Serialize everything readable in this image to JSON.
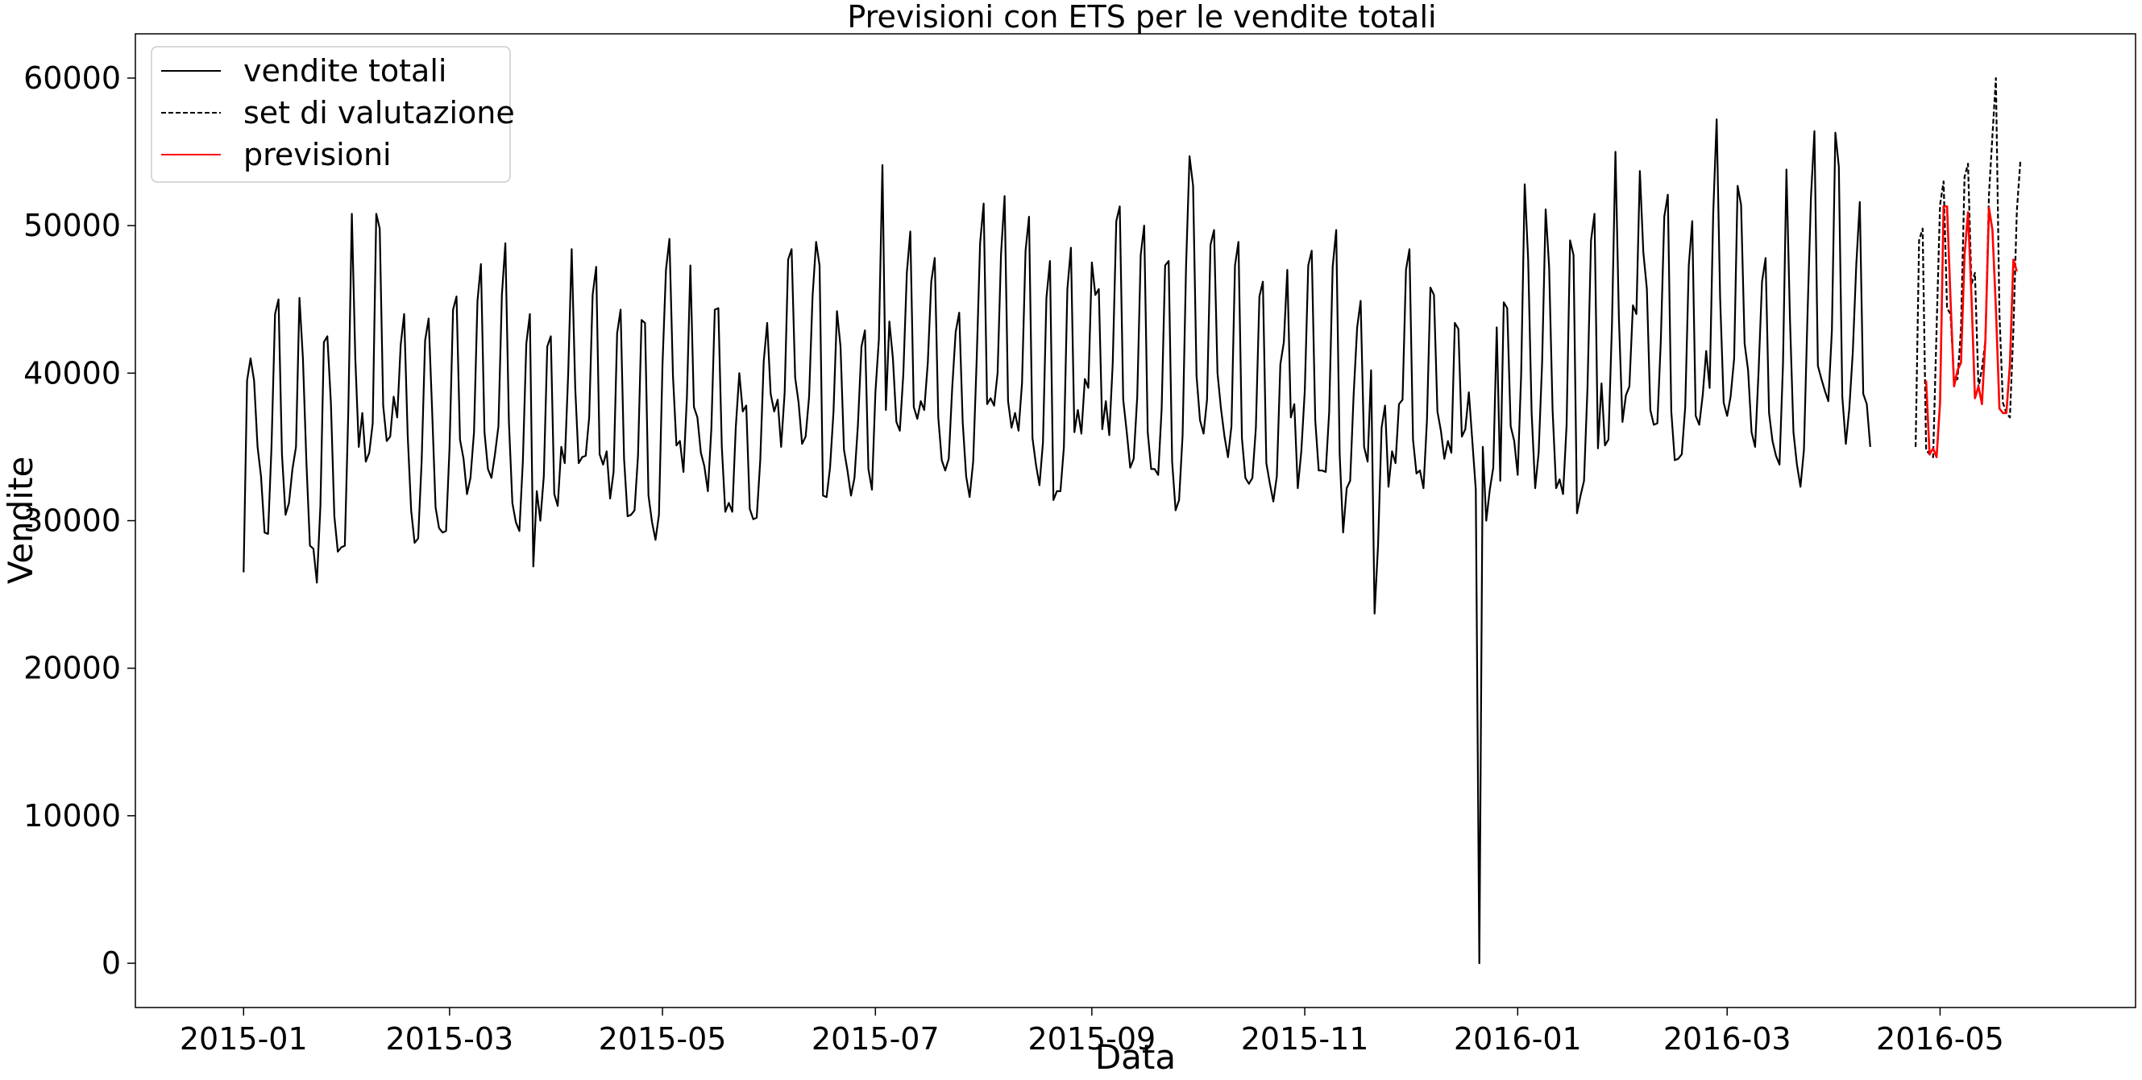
{
  "chart_data": {
    "type": "line",
    "title": "Previsioni con ETS per le vendite totali",
    "xlabel": "Data",
    "ylabel": "Vendite",
    "x_type": "date",
    "xlim": [
      "2014-12-01",
      "2016-06-26"
    ],
    "ylim": [
      -3000,
      63000
    ],
    "x_ticks": [
      "2015-01",
      "2015-03",
      "2015-05",
      "2015-07",
      "2015-09",
      "2015-11",
      "2016-01",
      "2016-03",
      "2016-05"
    ],
    "y_ticks": [
      0,
      10000,
      20000,
      30000,
      40000,
      50000,
      60000
    ],
    "grid": false,
    "legend_position": "top-left",
    "colors": {
      "vendite_totali": "#000000",
      "set_di_valutazione": "#000000",
      "previsioni": "#ff0000"
    },
    "series": [
      {
        "name": "vendite totali",
        "style": "solid",
        "start_date": "2015-01-01",
        "step": "1 day",
        "values": [
          26500,
          39500,
          41000,
          39500,
          35000,
          33000,
          29200,
          29100,
          35000,
          44000,
          45000,
          34500,
          30400,
          31200,
          33500,
          35000,
          45100,
          41000,
          34000,
          28300,
          28100,
          25800,
          31000,
          42100,
          42500,
          38000,
          30300,
          27900,
          28200,
          28300,
          37400,
          50800,
          41000,
          35000,
          37300,
          34000,
          34600,
          36600,
          50800,
          49800,
          37800,
          35400,
          35700,
          38400,
          37000,
          41900,
          44000,
          35800,
          30700,
          28500,
          28800,
          34000,
          42200,
          43700,
          37500,
          30900,
          29500,
          29200,
          29300,
          34900,
          44300,
          45200,
          35500,
          34200,
          31800,
          32900,
          36000,
          44900,
          47400,
          36000,
          33500,
          32900,
          34500,
          36400,
          45300,
          48800,
          36700,
          31200,
          29900,
          29300,
          34000,
          42000,
          44000,
          26900,
          32000,
          30000,
          33000,
          41800,
          42500,
          31800,
          31000,
          35000,
          33900,
          40000,
          48400,
          39000,
          33900,
          34300,
          34400,
          37000,
          45300,
          47200,
          34500,
          33800,
          34700,
          31500,
          33300,
          42700,
          44300,
          34200,
          30300,
          30400,
          30700,
          34400,
          43600,
          43400,
          31700,
          29900,
          28700,
          30400,
          40600,
          47000,
          49100,
          39800,
          35100,
          35400,
          33300,
          38400,
          47300,
          37700,
          37000,
          34600,
          33700,
          32000,
          36200,
          44300,
          44400,
          35000,
          30600,
          31200,
          30600,
          36300,
          40000,
          37400,
          37800,
          30800,
          30100,
          30200,
          34100,
          40800,
          43400,
          38600,
          37400,
          38200,
          35000,
          38700,
          47700,
          48400,
          39700,
          38000,
          35200,
          35700,
          38400,
          45200,
          48900,
          47300,
          31700,
          31600,
          33600,
          37400,
          44200,
          41800,
          34800,
          33400,
          31700,
          32900,
          36500,
          41800,
          42900,
          33500,
          32100,
          38700,
          42300,
          54100,
          37500,
          43500,
          41000,
          36700,
          36100,
          39900,
          46800,
          49600,
          37700,
          36900,
          38100,
          37500,
          40700,
          46200,
          47800,
          37000,
          34100,
          33400,
          34200,
          39000,
          42800,
          44100,
          36700,
          33000,
          31600,
          34000,
          40800,
          48800,
          51500,
          37900,
          38300,
          37800,
          40000,
          48100,
          52000,
          38100,
          36300,
          37300,
          36100,
          39300,
          48300,
          50600,
          35600,
          33800,
          32400,
          35300,
          45100,
          47600,
          31400,
          32000,
          32000,
          35000,
          45700,
          48500,
          36000,
          37500,
          35900,
          39600,
          39000,
          47500,
          45300,
          45700,
          36200,
          38100,
          35800,
          40700,
          50300,
          51300,
          38200,
          36000,
          33600,
          34200,
          38400,
          48000,
          50000,
          36000,
          33500,
          33500,
          33100,
          37600,
          47300,
          47600,
          34000,
          30700,
          31400,
          35800,
          47300,
          54700,
          52700,
          39800,
          36800,
          35900,
          38200,
          48700,
          49700,
          40000,
          37600,
          35700,
          34300,
          36400,
          47300,
          48900,
          35600,
          32900,
          32500,
          32900,
          36300,
          45200,
          46200,
          33900,
          32500,
          31300,
          33000,
          40600,
          42100,
          47000,
          37000,
          37900,
          32200,
          34700,
          38800,
          47300,
          48300,
          36800,
          33400,
          33400,
          33300,
          37400,
          47200,
          49700,
          34500,
          29200,
          32200,
          32700,
          38500,
          43100,
          44900,
          35000,
          34000,
          40200,
          23700,
          28300,
          36300,
          37800,
          32300,
          34700,
          33900,
          37900,
          38200,
          47000,
          48400,
          35500,
          33200,
          33400,
          32200,
          36800,
          45800,
          45300,
          37400,
          36100,
          34200,
          35400,
          34600,
          43400,
          43000,
          35700,
          36200,
          38700,
          35400,
          32100,
          0,
          35000,
          30000,
          32100,
          33600,
          43100,
          32700,
          44800,
          44400,
          36400,
          35400,
          33100,
          39900,
          52800,
          47700,
          37300,
          32200,
          34600,
          40700,
          51100,
          47200,
          37500,
          32200,
          32800,
          31800,
          36500,
          49000,
          48000,
          30500,
          31700,
          32700,
          39000,
          49000,
          50800,
          34900,
          39300,
          35100,
          35500,
          43300,
          55000,
          43700,
          36700,
          38500,
          39100,
          44600,
          44000,
          53700,
          48200,
          45700,
          37500,
          36500,
          36600,
          42200,
          50600,
          52100,
          37400,
          34100,
          34200,
          34500,
          37700,
          47300,
          50300,
          37100,
          36500,
          38500,
          41500,
          39000,
          50800,
          57200,
          45100,
          38000,
          37100,
          38400,
          41000,
          52700,
          51400,
          42000,
          40200,
          36000,
          35000,
          40100,
          46200,
          47800,
          37300,
          35400,
          34400,
          33800,
          40600,
          53800,
          43600,
          36000,
          33800,
          32300,
          34800,
          43700,
          51900,
          56400,
          40500,
          39600,
          38800,
          38100,
          42900,
          56300,
          54000,
          38400,
          35200,
          37600,
          41400,
          47400,
          51600,
          38600,
          37900,
          35000
        ]
      },
      {
        "name": "set di valutazione",
        "style": "dashed",
        "start_date": "2016-04-24",
        "step": "1 day",
        "values": [
          35000,
          49000,
          49800,
          34800,
          34500,
          34300,
          43000,
          51400,
          53000,
          44400,
          44000,
          39500,
          39600,
          43000,
          53300,
          54200,
          46000,
          46800,
          39000,
          40300,
          42200,
          52100,
          56100,
          60000,
          44000,
          38000,
          37300,
          37000,
          42900,
          51000,
          54400
        ]
      },
      {
        "name": "previsioni",
        "style": "solid",
        "start_date": "2016-04-27",
        "step": "1 day",
        "values": [
          39500,
          34500,
          34900,
          34300,
          38000,
          51300,
          51300,
          45000,
          39100,
          40200,
          40700,
          48000,
          50900,
          45200,
          38300,
          39100,
          37900,
          42300,
          51200,
          49700,
          44400,
          37600,
          37300,
          37300,
          40600,
          47700,
          46900
        ]
      }
    ]
  }
}
